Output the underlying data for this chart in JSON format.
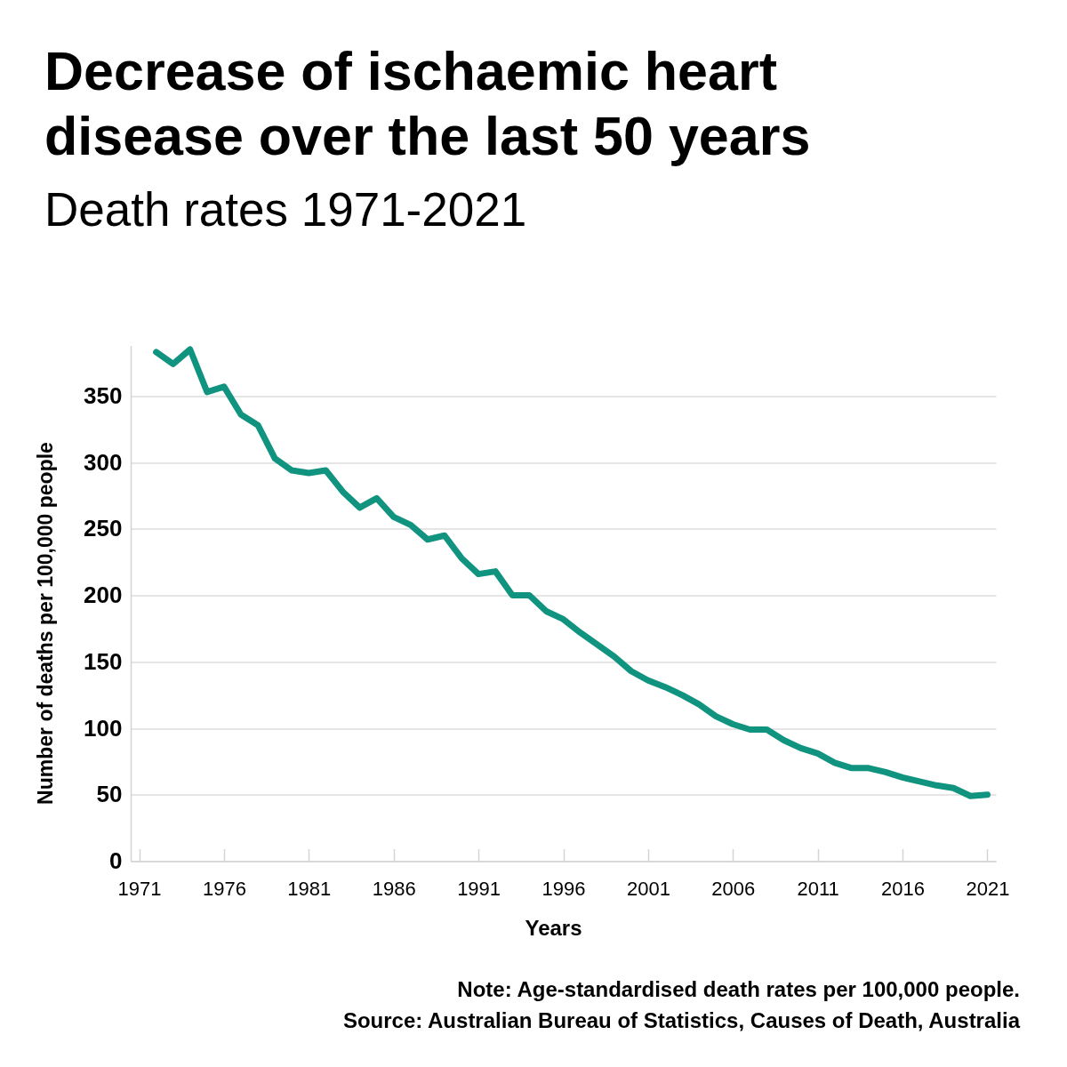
{
  "chart_data": {
    "type": "line",
    "title": "Decrease of ischaemic heart disease over the last 50 years",
    "subtitle": "Death rates 1971-2021",
    "xlabel": "Years",
    "ylabel": "Number of deaths per 100,000 people",
    "annotations": [
      "Note: Age-standardised death rates per 100,000 people.",
      "Source: Australian Bureau of Statistics, Causes of Death, Australia"
    ],
    "x": [
      1972,
      1973,
      1974,
      1975,
      1976,
      1977,
      1978,
      1979,
      1980,
      1981,
      1982,
      1983,
      1984,
      1985,
      1986,
      1987,
      1988,
      1989,
      1990,
      1991,
      1992,
      1993,
      1994,
      1995,
      1996,
      1997,
      1998,
      1999,
      2000,
      2001,
      2002,
      2003,
      2004,
      2005,
      2006,
      2007,
      2008,
      2009,
      2010,
      2011,
      2012,
      2013,
      2014,
      2015,
      2016,
      2017,
      2018,
      2019,
      2020,
      2021
    ],
    "series": [
      {
        "color": "#10937f",
        "values": [
          383,
          374,
          385,
          353,
          357,
          336,
          328,
          303,
          294,
          292,
          294,
          278,
          266,
          273,
          259,
          253,
          242,
          245,
          228,
          216,
          218,
          200,
          200,
          188,
          182,
          172,
          163,
          154,
          143,
          136,
          131,
          125,
          118,
          109,
          103,
          99,
          99,
          91,
          85,
          81,
          74,
          70,
          70,
          67,
          63,
          60,
          57,
          55,
          49,
          50
        ]
      }
    ],
    "xlim": [
      1970.5,
      2021.5
    ],
    "ylim": [
      0,
      388
    ],
    "xticks": [
      1971,
      1976,
      1981,
      1986,
      1991,
      1996,
      2001,
      2006,
      2011,
      2016,
      2021
    ],
    "yticks": [
      0,
      50,
      100,
      150,
      200,
      250,
      300,
      350
    ],
    "grid": "y",
    "line_style": "solid"
  }
}
